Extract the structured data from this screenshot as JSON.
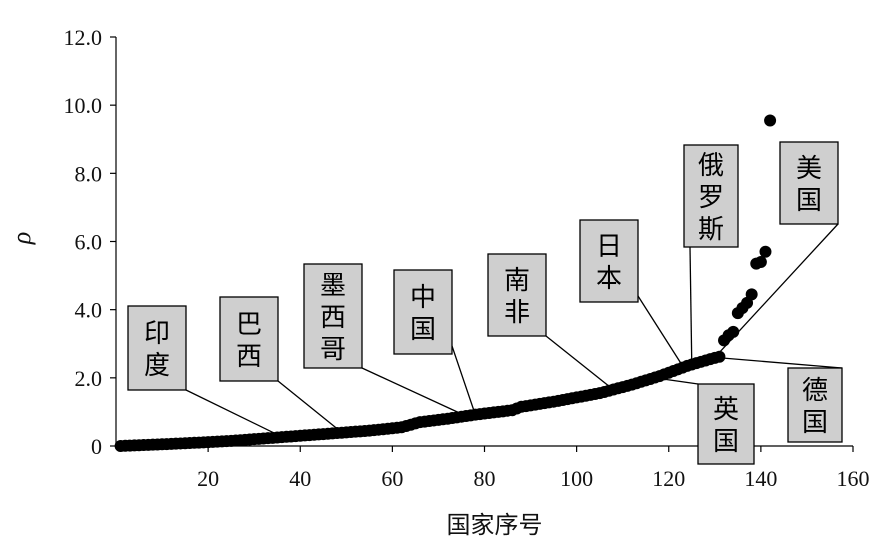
{
  "chart_data": {
    "type": "scatter",
    "title": "",
    "xlabel": "国家序号",
    "ylabel": "ρ",
    "xlim": [
      0,
      160
    ],
    "ylim": [
      0,
      12
    ],
    "xticks": [
      {
        "value": 20,
        "label": "20"
      },
      {
        "value": 40,
        "label": "40"
      },
      {
        "value": 60,
        "label": "60"
      },
      {
        "value": 80,
        "label": "80"
      },
      {
        "value": 100,
        "label": "100"
      },
      {
        "value": 120,
        "label": "120"
      },
      {
        "value": 140,
        "label": "140"
      },
      {
        "value": 160,
        "label": "160"
      }
    ],
    "yticks": [
      {
        "value": 0,
        "label": "0"
      },
      {
        "value": 2,
        "label": "2.0"
      },
      {
        "value": 4,
        "label": "4.0"
      },
      {
        "value": 6,
        "label": "6.0"
      },
      {
        "value": 8,
        "label": "8.0"
      },
      {
        "value": 10,
        "label": "10.0"
      },
      {
        "value": 12,
        "label": "12.0"
      }
    ],
    "marker_color": "#000000",
    "curve_points": [
      [
        1,
        0.0
      ],
      [
        10,
        0.05
      ],
      [
        18,
        0.1
      ],
      [
        25,
        0.15
      ],
      [
        35,
        0.25
      ],
      [
        45,
        0.35
      ],
      [
        55,
        0.45
      ],
      [
        62,
        0.55
      ],
      [
        66,
        0.7
      ],
      [
        72,
        0.8
      ],
      [
        78,
        0.92
      ],
      [
        86,
        1.05
      ],
      [
        88,
        1.15
      ],
      [
        95,
        1.3
      ],
      [
        105,
        1.55
      ],
      [
        112,
        1.8
      ],
      [
        118,
        2.05
      ],
      [
        124,
        2.35
      ],
      [
        129,
        2.55
      ],
      [
        131,
        2.62
      ]
    ],
    "outliers": [
      {
        "x": 132,
        "y": 3.1
      },
      {
        "x": 133,
        "y": 3.25
      },
      {
        "x": 134,
        "y": 3.35
      },
      {
        "x": 135,
        "y": 3.9
      },
      {
        "x": 136,
        "y": 4.05
      },
      {
        "x": 137,
        "y": 4.2
      },
      {
        "x": 138,
        "y": 4.45
      },
      {
        "x": 139,
        "y": 5.35
      },
      {
        "x": 140,
        "y": 5.4
      },
      {
        "x": 141,
        "y": 5.7
      },
      {
        "x": 142,
        "y": 9.55
      }
    ],
    "annotations": [
      {
        "label": "印度",
        "point": [
          36,
          0.27
        ]
      },
      {
        "label": "巴西",
        "point": [
          49,
          0.4
        ]
      },
      {
        "label": "墨西哥",
        "point": [
          76,
          0.88
        ]
      },
      {
        "label": "中国",
        "point": [
          78,
          0.92
        ]
      },
      {
        "label": "南非",
        "point": [
          108,
          1.65
        ]
      },
      {
        "label": "日本",
        "point": [
          123,
          2.35
        ]
      },
      {
        "label": "俄罗斯",
        "point": [
          125,
          2.4
        ]
      },
      {
        "label": "美国",
        "point": [
          130,
          2.6
        ]
      },
      {
        "label": "英国",
        "point": [
          117,
          2.0
        ]
      },
      {
        "label": "德国",
        "point": [
          130,
          2.6
        ]
      }
    ]
  }
}
